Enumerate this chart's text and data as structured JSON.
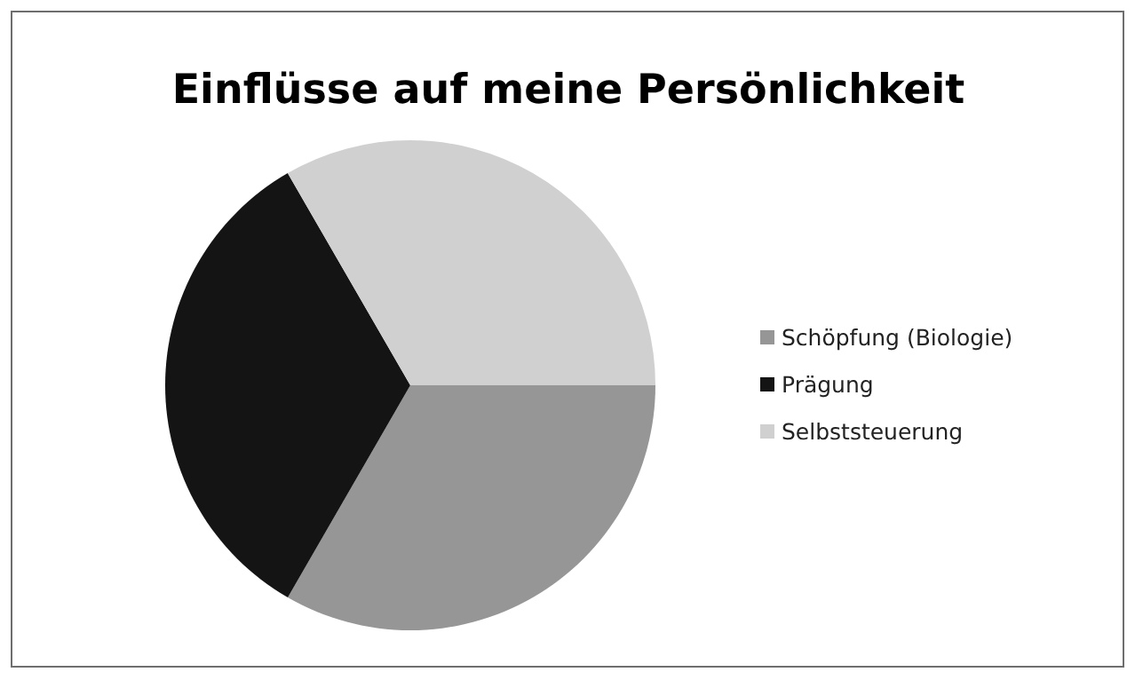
{
  "chart_data": {
    "type": "pie",
    "title": "Einflüsse auf meine Persönlichkeit",
    "categories": [
      "Schöpfung (Biologie)",
      "Prägung",
      "Selbststeuerung"
    ],
    "values": [
      33.33,
      33.33,
      33.34
    ],
    "colors": [
      "#969696",
      "#141414",
      "#d0d0d0"
    ],
    "legend": "right"
  }
}
